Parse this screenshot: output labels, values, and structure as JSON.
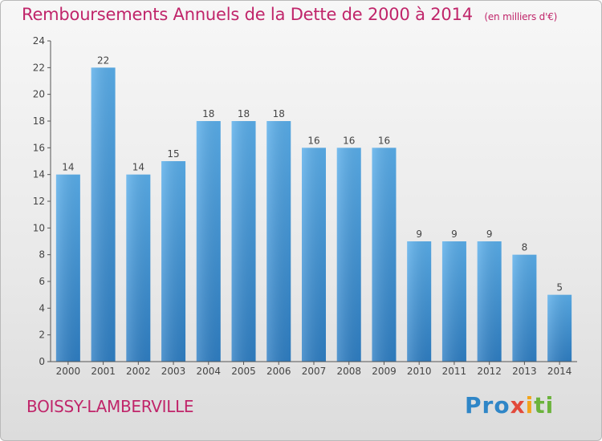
{
  "header": {
    "title": "Remboursements Annuels de la Dette de 2000 à 2014",
    "unit": "(en milliers d'€)"
  },
  "footer": {
    "city": "BOISSY-LAMBERVILLE",
    "logo_parts": [
      "Pro",
      "x",
      "i",
      "ti"
    ]
  },
  "colors": {
    "title": "#c0256a",
    "bar": "#4a9fe0",
    "axis": "#444444"
  },
  "chart_data": {
    "type": "bar",
    "title": "Remboursements Annuels de la Dette de 2000 à 2014",
    "subtitle": "(en milliers d'€)",
    "categories": [
      "2000",
      "2001",
      "2002",
      "2003",
      "2004",
      "2005",
      "2006",
      "2007",
      "2008",
      "2009",
      "2010",
      "2011",
      "2012",
      "2013",
      "2014"
    ],
    "values": [
      14,
      22,
      14,
      15,
      18,
      18,
      18,
      16,
      16,
      16,
      9,
      9,
      9,
      8,
      5
    ],
    "ylim": [
      0,
      24
    ],
    "yticks": [
      0,
      2,
      4,
      6,
      8,
      10,
      12,
      14,
      16,
      18,
      20,
      22,
      24
    ],
    "grid": false,
    "xlabel": "",
    "ylabel": ""
  }
}
